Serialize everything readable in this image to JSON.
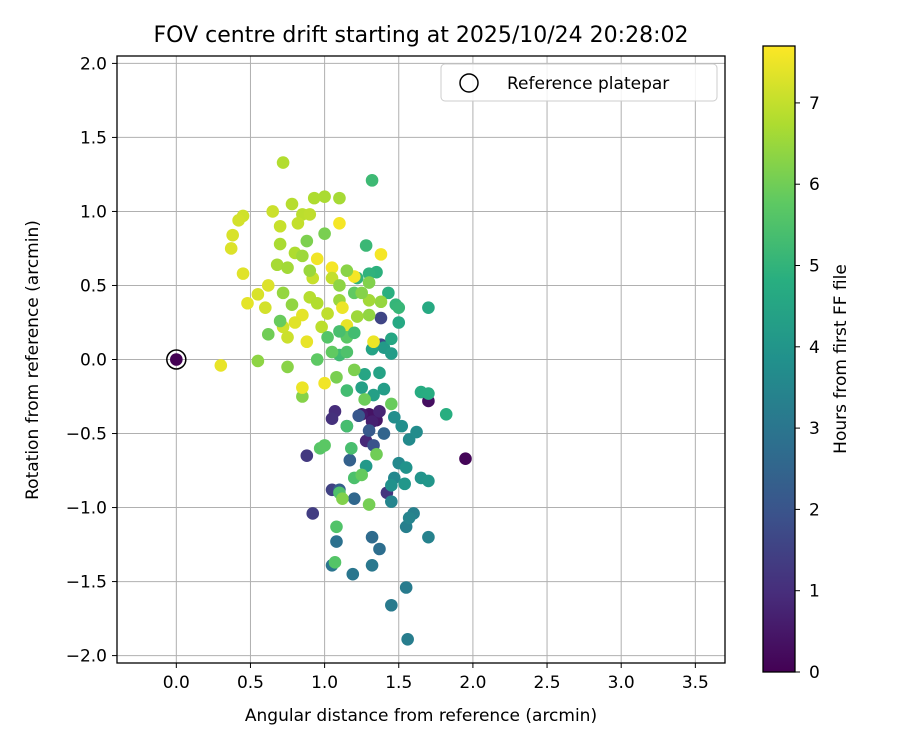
{
  "chart_data": {
    "type": "scatter",
    "title": "FOV centre drift starting at 2025/10/24 20:28:02",
    "xlabel": "Angular distance from reference (arcmin)",
    "ylabel": "Rotation from reference (arcmin)",
    "xlim": [
      -0.4,
      3.7
    ],
    "ylim": [
      -2.05,
      2.05
    ],
    "xticks": [
      0.0,
      0.5,
      1.0,
      1.5,
      2.0,
      2.5,
      3.0,
      3.5
    ],
    "xtick_labels": [
      "0.0",
      "0.5",
      "1.0",
      "1.5",
      "2.0",
      "2.5",
      "3.0",
      "3.5"
    ],
    "yticks": [
      -2.0,
      -1.5,
      -1.0,
      -0.5,
      0.0,
      0.5,
      1.0,
      1.5,
      2.0
    ],
    "ytick_labels": [
      "−2.0",
      "−1.5",
      "−1.0",
      "−0.5",
      "0.0",
      "0.5",
      "1.0",
      "1.5",
      "2.0"
    ],
    "grid": true,
    "legend": {
      "position": "top-right",
      "entries": [
        "Reference platepar"
      ]
    },
    "reference_point": {
      "x": 0.0,
      "y": 0.0,
      "hours": 0.0
    },
    "colorbar": {
      "label": "Hours from first FF file",
      "min": 0,
      "max": 7.7,
      "ticks": [
        0,
        1,
        2,
        3,
        4,
        5,
        6,
        7
      ],
      "tick_labels": [
        "0",
        "1",
        "2",
        "3",
        "4",
        "5",
        "6",
        "7"
      ],
      "colormap": "viridis"
    },
    "points": [
      [
        1.95,
        -0.67,
        0.1
      ],
      [
        1.7,
        -0.28,
        0.3
      ],
      [
        1.3,
        -0.37,
        0.4
      ],
      [
        1.35,
        -0.41,
        0.5
      ],
      [
        1.25,
        -0.37,
        0.6
      ],
      [
        1.32,
        -0.42,
        0.7
      ],
      [
        1.37,
        -0.35,
        0.8
      ],
      [
        1.28,
        -0.55,
        0.9
      ],
      [
        1.07,
        -0.35,
        1.0
      ],
      [
        1.05,
        -0.4,
        1.1
      ],
      [
        1.42,
        -0.9,
        1.2
      ],
      [
        0.88,
        -0.65,
        1.3
      ],
      [
        0.92,
        -1.04,
        1.4
      ],
      [
        1.05,
        -0.88,
        1.5
      ],
      [
        1.38,
        0.28,
        1.6
      ],
      [
        1.38,
        0.1,
        1.7
      ],
      [
        1.15,
        -0.45,
        1.9
      ],
      [
        1.33,
        -0.58,
        2.0
      ],
      [
        1.23,
        -0.38,
        2.1
      ],
      [
        1.3,
        -0.48,
        2.2
      ],
      [
        1.1,
        -0.88,
        2.3
      ],
      [
        1.17,
        -0.68,
        2.4
      ],
      [
        1.4,
        -0.5,
        2.5
      ],
      [
        1.2,
        -0.94,
        2.6
      ],
      [
        1.32,
        -1.2,
        2.7
      ],
      [
        1.37,
        -1.28,
        2.8
      ],
      [
        1.08,
        -1.23,
        2.9
      ],
      [
        1.05,
        -1.39,
        3.0
      ],
      [
        1.19,
        -1.45,
        3.05
      ],
      [
        1.32,
        -1.39,
        3.1
      ],
      [
        1.45,
        -1.66,
        3.15
      ],
      [
        1.55,
        -1.54,
        3.2
      ],
      [
        1.56,
        -1.89,
        3.25
      ],
      [
        1.55,
        -1.13,
        3.3
      ],
      [
        1.6,
        -1.04,
        3.35
      ],
      [
        1.7,
        -1.2,
        3.4
      ],
      [
        1.57,
        -1.07,
        3.45
      ],
      [
        1.45,
        -0.96,
        3.5
      ],
      [
        1.47,
        -0.8,
        3.55
      ],
      [
        1.5,
        -0.7,
        3.6
      ],
      [
        1.57,
        -0.54,
        3.65
      ],
      [
        1.62,
        -0.49,
        3.7
      ],
      [
        1.47,
        -0.39,
        3.75
      ],
      [
        1.52,
        -0.45,
        3.8
      ],
      [
        1.45,
        -0.85,
        3.85
      ],
      [
        1.55,
        -0.73,
        3.9
      ],
      [
        1.65,
        -0.8,
        3.95
      ],
      [
        1.7,
        -0.82,
        4.0
      ],
      [
        1.54,
        -0.84,
        4.05
      ],
      [
        1.28,
        -0.72,
        4.1
      ],
      [
        1.4,
        0.08,
        4.15
      ],
      [
        1.45,
        0.04,
        4.2
      ],
      [
        1.4,
        -0.2,
        4.25
      ],
      [
        1.33,
        -0.24,
        4.3
      ],
      [
        1.25,
        -0.19,
        4.35
      ],
      [
        1.37,
        -0.09,
        4.4
      ],
      [
        1.32,
        0.07,
        4.45
      ],
      [
        1.27,
        -0.1,
        4.5
      ],
      [
        1.45,
        0.14,
        4.55
      ],
      [
        1.5,
        0.25,
        4.6
      ],
      [
        1.7,
        0.35,
        4.65
      ],
      [
        1.65,
        -0.22,
        4.7
      ],
      [
        1.7,
        -0.23,
        4.75
      ],
      [
        1.82,
        -0.37,
        4.8
      ],
      [
        1.43,
        0.45,
        4.85
      ],
      [
        1.35,
        0.59,
        4.9
      ],
      [
        1.3,
        0.58,
        4.95
      ],
      [
        1.22,
        0.55,
        5.0
      ],
      [
        1.48,
        0.37,
        5.05
      ],
      [
        1.5,
        0.35,
        5.1
      ],
      [
        1.28,
        0.77,
        5.15
      ],
      [
        1.32,
        1.21,
        5.2
      ],
      [
        1.1,
        0.03,
        5.25
      ],
      [
        1.15,
        -0.21,
        5.3
      ],
      [
        1.15,
        -0.45,
        5.35
      ],
      [
        1.18,
        -0.6,
        5.4
      ],
      [
        1.2,
        -0.8,
        5.45
      ],
      [
        1.1,
        -0.9,
        5.5
      ],
      [
        1.08,
        -1.13,
        5.55
      ],
      [
        1.07,
        -1.37,
        5.6
      ],
      [
        0.97,
        -0.6,
        5.65
      ],
      [
        1.0,
        -0.58,
        5.7
      ],
      [
        0.95,
        0.0,
        5.75
      ],
      [
        1.2,
        0.45,
        5.8
      ],
      [
        1.25,
        -0.78,
        5.85
      ],
      [
        1.45,
        -0.3,
        5.9
      ],
      [
        1.27,
        -0.27,
        5.95
      ],
      [
        1.35,
        -0.64,
        6.0
      ],
      [
        1.3,
        -0.98,
        6.05
      ],
      [
        1.08,
        -0.12,
        6.1
      ],
      [
        1.2,
        -0.07,
        6.15
      ],
      [
        1.12,
        -0.94,
        6.2
      ],
      [
        0.85,
        -0.25,
        6.25
      ],
      [
        0.75,
        -0.05,
        6.3
      ],
      [
        0.55,
        -0.01,
        6.35
      ],
      [
        1.3,
        0.3,
        6.4
      ],
      [
        1.38,
        0.39,
        6.45
      ],
      [
        1.1,
        0.4,
        6.5
      ],
      [
        1.22,
        0.29,
        6.55
      ],
      [
        1.3,
        0.4,
        6.6
      ],
      [
        1.1,
        1.09,
        6.65
      ],
      [
        1.0,
        1.1,
        6.7
      ],
      [
        0.93,
        1.09,
        6.75
      ],
      [
        0.72,
        1.33,
        6.8
      ],
      [
        0.78,
        1.05,
        6.85
      ],
      [
        0.85,
        0.98,
        6.9
      ],
      [
        0.9,
        0.98,
        6.95
      ],
      [
        0.82,
        0.92,
        7.0
      ],
      [
        0.7,
        0.9,
        7.05
      ],
      [
        0.65,
        1.0,
        7.1
      ],
      [
        0.45,
        0.97,
        7.15
      ],
      [
        0.42,
        0.94,
        7.2
      ],
      [
        0.38,
        0.84,
        7.25
      ],
      [
        0.37,
        0.75,
        7.3
      ],
      [
        0.45,
        0.58,
        7.35
      ],
      [
        0.48,
        0.38,
        7.4
      ],
      [
        0.3,
        -0.04,
        7.45
      ],
      [
        0.85,
        -0.19,
        7.5
      ],
      [
        1.0,
        -0.16,
        7.55
      ],
      [
        1.1,
        0.92,
        7.6
      ],
      [
        1.38,
        0.71,
        7.6
      ],
      [
        1.05,
        0.62,
        7.6
      ],
      [
        1.2,
        0.56,
        7.6
      ],
      [
        0.95,
        0.68,
        7.55
      ],
      [
        1.12,
        0.35,
        7.5
      ],
      [
        1.33,
        0.12,
        7.5
      ],
      [
        1.15,
        0.23,
        7.45
      ],
      [
        0.88,
        0.12,
        7.45
      ],
      [
        0.85,
        0.3,
        7.4
      ],
      [
        0.8,
        0.25,
        7.35
      ],
      [
        0.62,
        0.5,
        7.3
      ],
      [
        0.55,
        0.44,
        7.25
      ],
      [
        0.6,
        0.35,
        7.2
      ],
      [
        0.72,
        0.22,
        7.15
      ],
      [
        0.75,
        0.15,
        7.1
      ],
      [
        0.92,
        0.55,
        7.05
      ],
      [
        1.05,
        0.55,
        7.0
      ],
      [
        1.02,
        0.31,
        6.95
      ],
      [
        0.98,
        0.22,
        6.9
      ],
      [
        0.9,
        0.42,
        6.85
      ],
      [
        0.95,
        0.38,
        6.8
      ],
      [
        0.8,
        0.72,
        6.75
      ],
      [
        0.7,
        0.78,
        6.7
      ],
      [
        0.68,
        0.64,
        6.65
      ],
      [
        0.75,
        0.62,
        6.6
      ],
      [
        0.85,
        0.7,
        6.55
      ],
      [
        0.9,
        0.6,
        6.5
      ],
      [
        0.72,
        0.45,
        6.45
      ],
      [
        0.78,
        0.37,
        6.4
      ],
      [
        1.1,
        0.5,
        6.35
      ],
      [
        1.15,
        0.6,
        6.3
      ],
      [
        1.25,
        0.45,
        6.25
      ],
      [
        1.3,
        0.52,
        6.2
      ],
      [
        0.88,
        0.8,
        6.15
      ],
      [
        1.0,
        0.85,
        6.1
      ],
      [
        0.62,
        0.17,
        6.0
      ],
      [
        0.7,
        0.26,
        5.9
      ],
      [
        1.05,
        0.05,
        5.8
      ],
      [
        1.15,
        0.15,
        5.7
      ],
      [
        1.02,
        0.15,
        5.6
      ],
      [
        1.15,
        0.05,
        5.5
      ],
      [
        1.1,
        0.19,
        5.4
      ],
      [
        1.2,
        0.18,
        5.3
      ]
    ]
  }
}
